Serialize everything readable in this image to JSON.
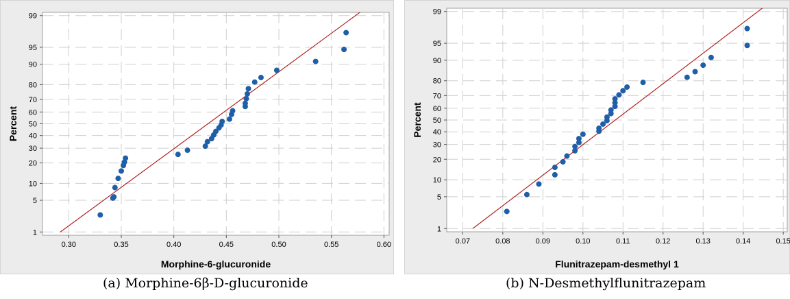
{
  "chart_data": [
    {
      "type": "scatter",
      "subtype": "normal-probability-plot",
      "caption": "(a) Morphine-6β-D-glucuronide",
      "xlabel": "Morphine-6-glucuronide",
      "ylabel": "Percent",
      "xlim": [
        0.275,
        0.605
      ],
      "y_scale": "normal-probability",
      "y_tick_values": [
        1,
        5,
        10,
        20,
        30,
        40,
        50,
        60,
        70,
        80,
        90,
        95,
        99
      ],
      "y_tick_labels": [
        "1",
        "5",
        "10",
        "20",
        "30",
        "40",
        "50",
        "60",
        "70",
        "80",
        "90",
        "95",
        "99"
      ],
      "x_tick_values": [
        0.3,
        0.35,
        0.4,
        0.45,
        0.5,
        0.55,
        0.6
      ],
      "x_tick_labels": [
        "0.30",
        "0.35",
        "0.40",
        "0.45",
        "0.50",
        "0.55",
        "0.60"
      ],
      "grid": true,
      "fit_line": [
        [
          0.292,
          1
        ],
        [
          0.588,
          99.5
        ]
      ],
      "colors": {
        "points": "#1f5fa8",
        "line": "#b22222",
        "grid": "#cfcfcf",
        "plot_border": "#a0a0a0"
      },
      "x": [
        0.33,
        0.342,
        0.343,
        0.344,
        0.347,
        0.35,
        0.352,
        0.353,
        0.354,
        0.404,
        0.413,
        0.43,
        0.432,
        0.436,
        0.438,
        0.44,
        0.443,
        0.445,
        0.446,
        0.453,
        0.455,
        0.456,
        0.468,
        0.468,
        0.469,
        0.47,
        0.471,
        0.477,
        0.483,
        0.498,
        0.535,
        0.562,
        0.564
      ],
      "y": [
        2.5,
        5.5,
        5.8,
        8.5,
        12,
        15.5,
        18.5,
        20.5,
        23,
        25.5,
        28.5,
        31.5,
        35,
        37.5,
        40.5,
        43.5,
        46.5,
        49,
        52,
        54,
        58,
        61,
        64.5,
        67,
        70.5,
        74,
        77.5,
        81.5,
        84,
        87.5,
        91,
        94.5,
        97.5
      ]
    },
    {
      "type": "scatter",
      "subtype": "normal-probability-plot",
      "caption": "(b) N-Desmethylflunitrazepam",
      "xlabel": "Flunitrazepam-desmethyl 1",
      "ylabel": "Percent",
      "xlim": [
        0.066,
        0.151
      ],
      "y_scale": "normal-probability",
      "y_tick_values": [
        1,
        5,
        10,
        20,
        30,
        40,
        50,
        60,
        70,
        80,
        90,
        95,
        99
      ],
      "y_tick_labels": [
        "1",
        "5",
        "10",
        "20",
        "30",
        "40",
        "50",
        "60",
        "70",
        "80",
        "90",
        "95",
        "99"
      ],
      "x_tick_values": [
        0.07,
        0.08,
        0.09,
        0.1,
        0.11,
        0.12,
        0.13,
        0.14,
        0.15
      ],
      "x_tick_labels": [
        "0.07",
        "0.08",
        "0.09",
        "0.10",
        "0.11",
        "0.12",
        "0.13",
        "0.14",
        "0.15"
      ],
      "grid": true,
      "fit_line": [
        [
          0.0725,
          1
        ],
        [
          0.1475,
          99.5
        ]
      ],
      "colors": {
        "points": "#1f5fa8",
        "line": "#b22222",
        "grid": "#cfcfcf",
        "plot_border": "#a0a0a0"
      },
      "x": [
        0.081,
        0.086,
        0.089,
        0.093,
        0.093,
        0.095,
        0.096,
        0.098,
        0.098,
        0.099,
        0.099,
        0.1,
        0.104,
        0.104,
        0.105,
        0.106,
        0.106,
        0.107,
        0.107,
        0.108,
        0.108,
        0.108,
        0.109,
        0.11,
        0.111,
        0.115,
        0.126,
        0.128,
        0.13,
        0.132,
        0.141,
        0.141
      ],
      "y": [
        2.5,
        5.5,
        8.5,
        12,
        15.5,
        18.5,
        22,
        25.5,
        28.5,
        31.5,
        34.5,
        38,
        40.5,
        43,
        46.5,
        49.5,
        52.5,
        55.5,
        58.5,
        61.5,
        64.5,
        67.5,
        70.5,
        73.5,
        76,
        79,
        82,
        85,
        88,
        91,
        94.5,
        97.5
      ]
    }
  ]
}
